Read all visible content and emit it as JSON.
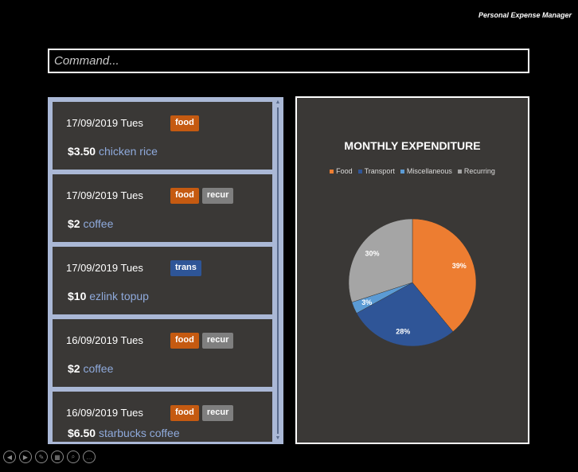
{
  "app": {
    "title": "Personal Expense Manager"
  },
  "command": {
    "placeholder": "Command..."
  },
  "expenses": [
    {
      "date": "17/09/2019 Tues",
      "tags": [
        "food"
      ],
      "amount": "$3.50",
      "description": "chicken rice"
    },
    {
      "date": "17/09/2019 Tues",
      "tags": [
        "food",
        "recur"
      ],
      "amount": "$2",
      "description": "coffee"
    },
    {
      "date": "17/09/2019 Tues",
      "tags": [
        "trans"
      ],
      "amount": "$10",
      "description": "ezlink topup"
    },
    {
      "date": "16/09/2019 Tues",
      "tags": [
        "food",
        "recur"
      ],
      "amount": "$2",
      "description": "coffee"
    },
    {
      "date": "16/09/2019 Tues",
      "tags": [
        "food",
        "recur"
      ],
      "amount": "$6.50",
      "description": "starbucks coffee"
    }
  ],
  "chart_data": {
    "type": "pie",
    "title": "MONTHLY EXPENDITURE",
    "legend_position": "top",
    "categories": [
      "Food",
      "Transport",
      "Miscellaneous",
      "Recurring"
    ],
    "values": [
      39,
      28,
      3,
      30
    ],
    "labels": [
      "39%",
      "28%",
      "3%",
      "30%"
    ],
    "colors": [
      "#ed7d31",
      "#2f5597",
      "#5b9bd5",
      "#a5a5a5"
    ]
  },
  "icons": [
    "prev-icon",
    "next-icon",
    "pen-icon",
    "slides-icon",
    "zoom-icon",
    "more-icon"
  ]
}
